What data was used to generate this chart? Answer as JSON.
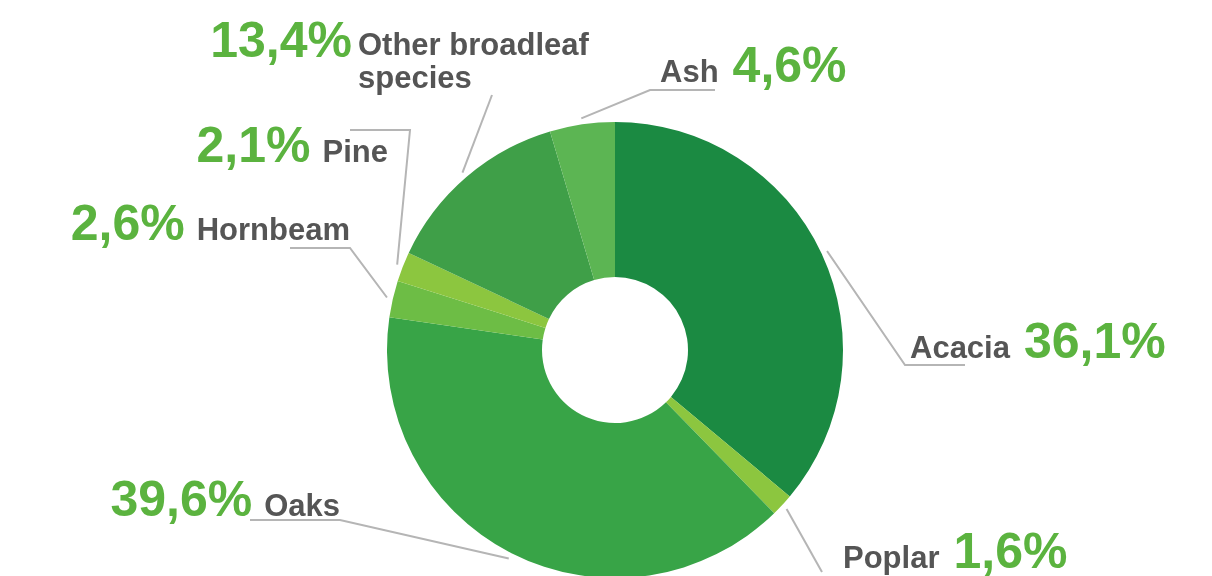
{
  "chart_data": {
    "type": "donut",
    "categories": [
      "Acacia",
      "Poplar",
      "Oaks",
      "Hornbeam",
      "Pine",
      "Other broadleaf species",
      "Ash"
    ],
    "values": [
      36.1,
      1.6,
      39.6,
      2.6,
      2.1,
      13.4,
      4.6
    ],
    "value_labels": [
      "36,1%",
      "1,6%",
      "39,6%",
      "2,6%",
      "2,1%",
      "13,4%",
      "4,6%"
    ],
    "colors": [
      "#1b8a42",
      "#8cc63f",
      "#38a447",
      "#6dbd45",
      "#8cc63f",
      "#3f9f48",
      "#5cb553"
    ],
    "legend": false
  }
}
